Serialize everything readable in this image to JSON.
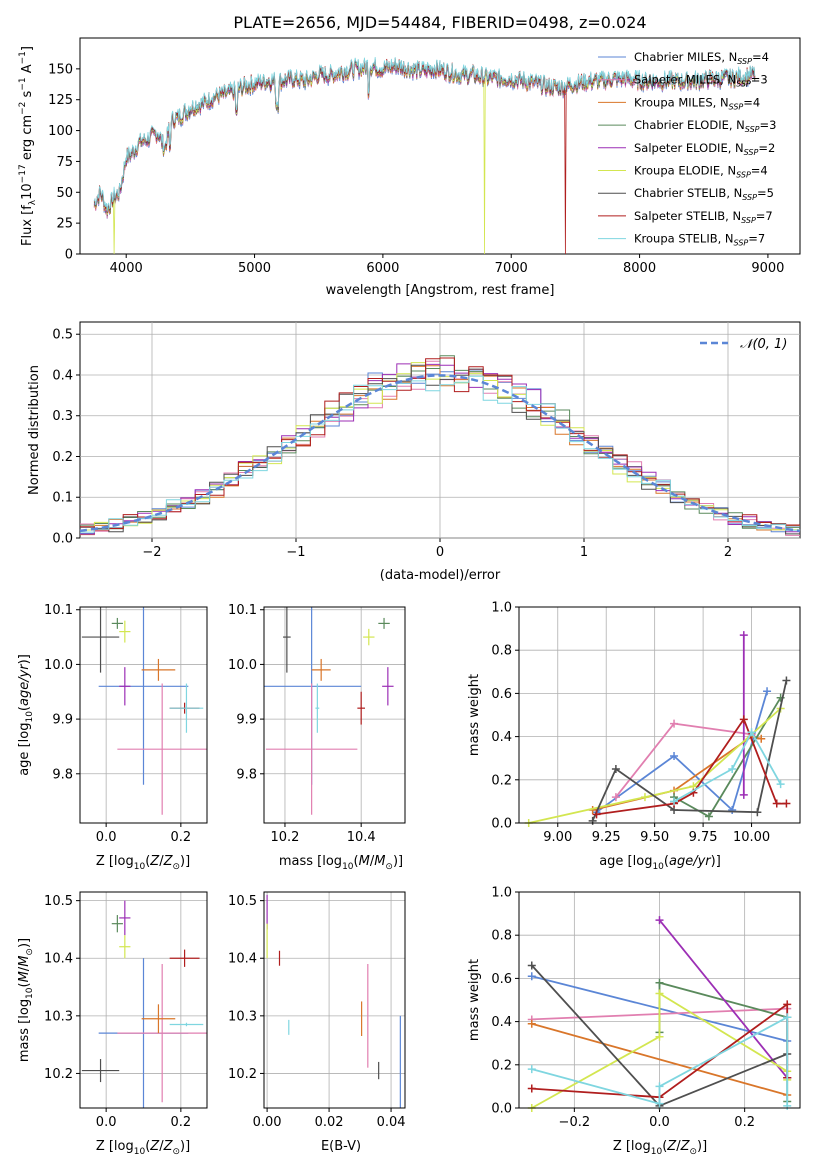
{
  "figure": {
    "title": "PLATE=2656, MJD=54484, FIBERID=0498, z=0.024"
  },
  "colors": {
    "Chabrier MILES": "#5b86d6",
    "Salpeter MILES": "#e17fb0",
    "Kroupa MILES": "#d9762a",
    "Chabrier ELODIE": "#5a8a5c",
    "Salpeter ELODIE": "#9c2fb5",
    "Kroupa ELODIE": "#d3e650",
    "Chabrier STELIB": "#4f4f4f",
    "Salpeter STELIB": "#b01e1e",
    "Kroupa STELIB": "#7fd6e0"
  },
  "chart_data": [
    {
      "id": "spectrum",
      "type": "line",
      "title": "PLATE=2656, MJD=54484, FIBERID=0498, z=0.024",
      "xlabel": "wavelength [Angstrom, rest frame]",
      "ylabel": "Flux [f_λ 10^-17 erg cm^-2 s^-1 A^-1]",
      "xlim": [
        3640,
        9250
      ],
      "ylim": [
        0,
        175
      ],
      "xticks": [
        4000,
        5000,
        6000,
        7000,
        8000,
        9000
      ],
      "yticks": [
        0,
        25,
        50,
        75,
        100,
        125,
        150
      ],
      "grid": false,
      "legend_position": "top-right",
      "legend": [
        "Chabrier MILES, N_SSP=4",
        "Salpeter MILES, N_SSP=3",
        "Kroupa MILES, N_SSP=4",
        "Chabrier ELODIE, N_SSP=3",
        "Salpeter ELODIE, N_SSP=2",
        "Kroupa ELODIE, N_SSP=4",
        "Chabrier STELIB, N_SSP=5",
        "Salpeter STELIB, N_SSP=7",
        "Kroupa STELIB, N_SSP=7"
      ],
      "spectrum": {
        "x": [
          3750,
          3800,
          3850,
          3900,
          3950,
          4000,
          4050,
          4100,
          4150,
          4200,
          4250,
          4300,
          4350,
          4400,
          4500,
          4600,
          4700,
          4800,
          4900,
          5000,
          5100,
          5200,
          5300,
          5400,
          5500,
          5600,
          5700,
          5800,
          5900,
          6000,
          6100,
          6200,
          6300,
          6400,
          6500,
          6600,
          6700,
          6800,
          6900,
          7000,
          7100,
          7200,
          7300,
          7400,
          7500,
          7600,
          7700,
          7800,
          7900,
          8000,
          8200,
          8400,
          8600,
          8800,
          8900
        ],
        "y": [
          40,
          50,
          35,
          45,
          50,
          78,
          82,
          90,
          92,
          95,
          98,
          85,
          108,
          110,
          118,
          122,
          128,
          130,
          135,
          138,
          140,
          140,
          142,
          140,
          145,
          145,
          148,
          150,
          152,
          150,
          152,
          150,
          148,
          150,
          148,
          145,
          145,
          143,
          142,
          142,
          140,
          138,
          135,
          135,
          138,
          140,
          140,
          142,
          142,
          140,
          140,
          140,
          142,
          143,
          145
        ]
      },
      "dropouts": [
        {
          "model": "Kroupa ELODIE",
          "x": 3905
        },
        {
          "model": "Kroupa ELODIE",
          "x": 6790
        },
        {
          "model": "Salpeter STELIB",
          "x": 7420
        }
      ]
    },
    {
      "id": "residuals",
      "type": "line",
      "xlabel": "(data-model)/error",
      "ylabel": "Normed distribution",
      "xlim": [
        -2.5,
        2.5
      ],
      "ylim": [
        0,
        0.53
      ],
      "xticks": [
        -2,
        -1,
        0,
        1,
        2
      ],
      "yticks": [
        0.0,
        0.1,
        0.2,
        0.3,
        0.4,
        0.5
      ],
      "grid": true,
      "legend_position": "top-right",
      "legend": [
        "N(0,1)"
      ],
      "bin_width": 0.1,
      "models": [
        "Chabrier MILES",
        "Salpeter MILES",
        "Kroupa MILES",
        "Chabrier ELODIE",
        "Salpeter ELODIE",
        "Kroupa ELODIE",
        "Chabrier STELIB",
        "Salpeter STELIB",
        "Kroupa STELIB"
      ]
    },
    {
      "id": "age-vs-Z",
      "type": "scatter",
      "xlabel": "Z [log10(Z/Z☉)]",
      "ylabel": "age [log10(age/yr)]",
      "xlim": [
        -0.07,
        0.27
      ],
      "ylim": [
        9.71,
        10.105
      ],
      "xticks": [
        0.0,
        0.2
      ],
      "yticks": [
        9.8,
        9.9,
        10.0,
        10.1
      ],
      "grid": true,
      "points": [
        {
          "model": "Chabrier MILES",
          "x": 0.1,
          "y": 9.96,
          "xerr": 0.12,
          "yerr": 0.18
        },
        {
          "model": "Salpeter MILES",
          "x": 0.15,
          "y": 9.845,
          "xerr": 0.12,
          "yerr": 0.12
        },
        {
          "model": "Kroupa MILES",
          "x": 0.14,
          "y": 9.99,
          "xerr": 0.045,
          "yerr": 0.02
        },
        {
          "model": "Chabrier ELODIE",
          "x": 0.03,
          "y": 10.075,
          "xerr": 0.015,
          "yerr": 0.01
        },
        {
          "model": "Salpeter ELODIE",
          "x": 0.05,
          "y": 9.96,
          "xerr": 0.015,
          "yerr": 0.035
        },
        {
          "model": "Kroupa ELODIE",
          "x": 0.05,
          "y": 10.06,
          "xerr": 0.015,
          "yerr": 0.02
        },
        {
          "model": "Chabrier STELIB",
          "x": -0.015,
          "y": 10.05,
          "xerr": 0.05,
          "yerr": 0.065
        },
        {
          "model": "Salpeter STELIB",
          "x": 0.21,
          "y": 9.92,
          "xerr": 0.04,
          "yerr": 0.01
        },
        {
          "model": "Kroupa STELIB",
          "x": 0.215,
          "y": 9.92,
          "xerr": 0.045,
          "yerr": 0.045
        }
      ]
    },
    {
      "id": "age-vs-mass",
      "type": "scatter",
      "xlabel": "mass [log10(M/M☉)]",
      "ylabel": "",
      "xlim": [
        10.145,
        10.515
      ],
      "ylim": [
        9.71,
        10.105
      ],
      "xticks": [
        10.2,
        10.4
      ],
      "yticks": [
        9.8,
        9.9,
        10.0,
        10.1
      ],
      "grid": true,
      "points": [
        {
          "model": "Chabrier MILES",
          "x": 10.27,
          "y": 9.96,
          "xerr": 0.13,
          "yerr": 0.18
        },
        {
          "model": "Salpeter MILES",
          "x": 10.27,
          "y": 9.845,
          "xerr": 0.12,
          "yerr": 0.12
        },
        {
          "model": "Kroupa MILES",
          "x": 10.295,
          "y": 9.99,
          "xerr": 0.025,
          "yerr": 0.02
        },
        {
          "model": "Chabrier ELODIE",
          "x": 10.46,
          "y": 10.075,
          "xerr": 0.015,
          "yerr": 0.01
        },
        {
          "model": "Salpeter ELODIE",
          "x": 10.47,
          "y": 9.96,
          "xerr": 0.015,
          "yerr": 0.035
        },
        {
          "model": "Kroupa ELODIE",
          "x": 10.42,
          "y": 10.05,
          "xerr": 0.015,
          "yerr": 0.015
        },
        {
          "model": "Chabrier STELIB",
          "x": 10.205,
          "y": 10.05,
          "xerr": 0.01,
          "yerr": 0.065
        },
        {
          "model": "Salpeter STELIB",
          "x": 10.4,
          "y": 9.92,
          "xerr": 0.01,
          "yerr": 0.03
        },
        {
          "model": "Kroupa STELIB",
          "x": 10.285,
          "y": 9.92,
          "xerr": 0.005,
          "yerr": 0.045
        }
      ]
    },
    {
      "id": "mass-vs-Z",
      "type": "scatter",
      "xlabel": "Z [log10(Z/Z☉)]",
      "ylabel": "mass [log10(M/M☉)]",
      "xlim": [
        -0.07,
        0.27
      ],
      "ylim": [
        10.14,
        10.515
      ],
      "xticks": [
        0.0,
        0.2
      ],
      "yticks": [
        10.2,
        10.3,
        10.4,
        10.5
      ],
      "grid": true,
      "points": [
        {
          "model": "Chabrier MILES",
          "x": 0.1,
          "y": 10.27,
          "xerr": 0.12,
          "yerr": 0.13
        },
        {
          "model": "Salpeter MILES",
          "x": 0.15,
          "y": 10.27,
          "xerr": 0.12,
          "yerr": 0.12
        },
        {
          "model": "Kroupa MILES",
          "x": 0.14,
          "y": 10.295,
          "xerr": 0.045,
          "yerr": 0.025
        },
        {
          "model": "Chabrier ELODIE",
          "x": 0.03,
          "y": 10.46,
          "xerr": 0.015,
          "yerr": 0.015
        },
        {
          "model": "Salpeter ELODIE",
          "x": 0.05,
          "y": 10.47,
          "xerr": 0.015,
          "yerr": 0.03
        },
        {
          "model": "Kroupa ELODIE",
          "x": 0.05,
          "y": 10.42,
          "xerr": 0.015,
          "yerr": 0.02
        },
        {
          "model": "Chabrier STELIB",
          "x": -0.015,
          "y": 10.205,
          "xerr": 0.05,
          "yerr": 0.02
        },
        {
          "model": "Salpeter STELIB",
          "x": 0.21,
          "y": 10.4,
          "xerr": 0.04,
          "yerr": 0.015
        },
        {
          "model": "Kroupa STELIB",
          "x": 0.215,
          "y": 10.285,
          "xerr": 0.045,
          "yerr": 0.003
        }
      ]
    },
    {
      "id": "mass-vs-EBV",
      "type": "scatter",
      "xlabel": "E(B-V)",
      "ylabel": "",
      "xlim": [
        -0.001,
        0.0445
      ],
      "ylim": [
        10.14,
        10.515
      ],
      "xticks": [
        0.0,
        0.02,
        0.04
      ],
      "yticks": [
        10.2,
        10.3,
        10.4,
        10.5
      ],
      "grid": true,
      "points": [
        {
          "model": "Chabrier MILES",
          "x": 0.043,
          "y": 10.22,
          "yerr": 0.08
        },
        {
          "model": "Salpeter MILES",
          "x": 0.0325,
          "y": 10.3,
          "yerr": 0.09
        },
        {
          "model": "Kroupa MILES",
          "x": 0.0305,
          "y": 10.295,
          "yerr": 0.03
        },
        {
          "model": "Salpeter ELODIE",
          "x": 0.0,
          "y": 10.48,
          "yerr": 0.03
        },
        {
          "model": "Kroupa ELODIE",
          "x": 0.0,
          "y": 10.43,
          "yerr": 0.03
        },
        {
          "model": "Chabrier STELIB",
          "x": 0.036,
          "y": 10.205,
          "yerr": 0.015
        },
        {
          "model": "Salpeter STELIB",
          "x": 0.004,
          "y": 10.4,
          "yerr": 0.013
        },
        {
          "model": "Kroupa STELIB",
          "x": 0.007,
          "y": 10.28,
          "yerr": 0.013
        }
      ]
    },
    {
      "id": "massweight-vs-age",
      "type": "line",
      "xlabel": "age [log10(age/yr)]",
      "ylabel": "mass weight",
      "xlim": [
        8.8,
        10.25
      ],
      "ylim": [
        0,
        1
      ],
      "xticks": [
        9.0,
        9.25,
        9.5,
        9.75,
        10.0
      ],
      "yticks": [
        0.0,
        0.2,
        0.4,
        0.6,
        0.8,
        1.0
      ],
      "grid": true,
      "series": [
        {
          "name": "Chabrier MILES",
          "x": [
            9.2,
            9.6,
            9.9,
            10.08
          ],
          "y": [
            0.05,
            0.31,
            0.06,
            0.61
          ]
        },
        {
          "name": "Salpeter MILES",
          "x": [
            9.3,
            9.6,
            10.0
          ],
          "y": [
            0.12,
            0.46,
            0.41
          ]
        },
        {
          "name": "Kroupa MILES",
          "x": [
            9.18,
            9.6,
            10.0,
            10.05
          ],
          "y": [
            0.06,
            0.15,
            0.4,
            0.39
          ]
        },
        {
          "name": "Chabrier ELODIE",
          "x": [
            9.6,
            9.78,
            10.15
          ],
          "y": [
            0.12,
            0.03,
            0.58
          ]
        },
        {
          "name": "Salpeter ELODIE",
          "x": [
            9.96,
            9.96
          ],
          "y": [
            0.87,
            0.13
          ]
        },
        {
          "name": "Kroupa ELODIE",
          "x": [
            8.85,
            9.45,
            9.7,
            10.15
          ],
          "y": [
            0.0,
            0.12,
            0.17,
            0.53
          ]
        },
        {
          "name": "Chabrier STELIB",
          "x": [
            9.18,
            9.3,
            9.6,
            10.03,
            10.18
          ],
          "y": [
            0.01,
            0.25,
            0.06,
            0.05,
            0.66
          ]
        },
        {
          "name": "Salpeter STELIB",
          "x": [
            9.2,
            9.6,
            9.7,
            9.96,
            10.13,
            10.18
          ],
          "y": [
            0.04,
            0.09,
            0.14,
            0.48,
            0.09,
            0.09
          ]
        },
        {
          "name": "Kroupa STELIB",
          "x": [
            9.6,
            9.9,
            10.0,
            10.15
          ],
          "y": [
            0.1,
            0.25,
            0.42,
            0.18
          ]
        }
      ]
    },
    {
      "id": "massweight-vs-Z",
      "type": "line",
      "xlabel": "Z [log10(Z/Z☉)]",
      "ylabel": "mass weight",
      "xlim": [
        -0.33,
        0.33
      ],
      "ylim": [
        0,
        1
      ],
      "xticks": [
        -0.2,
        0.0,
        0.2
      ],
      "yticks": [
        0.0,
        0.2,
        0.4,
        0.6,
        0.8,
        1.0
      ],
      "grid": true,
      "series": [
        {
          "name": "Chabrier MILES",
          "x": [
            -0.3,
            0.3
          ],
          "y": [
            0.61,
            0.31
          ]
        },
        {
          "name": "Salpeter MILES",
          "x": [
            -0.3,
            0.3
          ],
          "y": [
            0.41,
            0.46
          ]
        },
        {
          "name": "Kroupa MILES",
          "x": [
            -0.3,
            0.3
          ],
          "y": [
            0.39,
            0.06
          ]
        },
        {
          "name": "Chabrier ELODIE",
          "x": [
            0.0,
            0.0,
            0.3,
            0.3
          ],
          "y": [
            0.35,
            0.58,
            0.42,
            0.03
          ]
        },
        {
          "name": "Salpeter ELODIE",
          "x": [
            0.0,
            0.3,
            0.3
          ],
          "y": [
            0.87,
            0.14,
            0.14
          ]
        },
        {
          "name": "Kroupa ELODIE",
          "x": [
            -0.3,
            0.0,
            0.0,
            0.3,
            0.3
          ],
          "y": [
            0.0,
            0.33,
            0.53,
            0.17,
            0.13
          ]
        },
        {
          "name": "Chabrier STELIB",
          "x": [
            -0.3,
            0.0,
            0.3
          ],
          "y": [
            0.66,
            0.01,
            0.25
          ]
        },
        {
          "name": "Salpeter STELIB",
          "x": [
            -0.3,
            0.0,
            0.3,
            0.3
          ],
          "y": [
            0.09,
            0.05,
            0.48,
            0.14
          ]
        },
        {
          "name": "Kroupa STELIB",
          "x": [
            -0.3,
            0.0,
            0.0,
            0.3,
            0.3
          ],
          "y": [
            0.18,
            0.02,
            0.1,
            0.42,
            0.01
          ]
        }
      ]
    }
  ]
}
